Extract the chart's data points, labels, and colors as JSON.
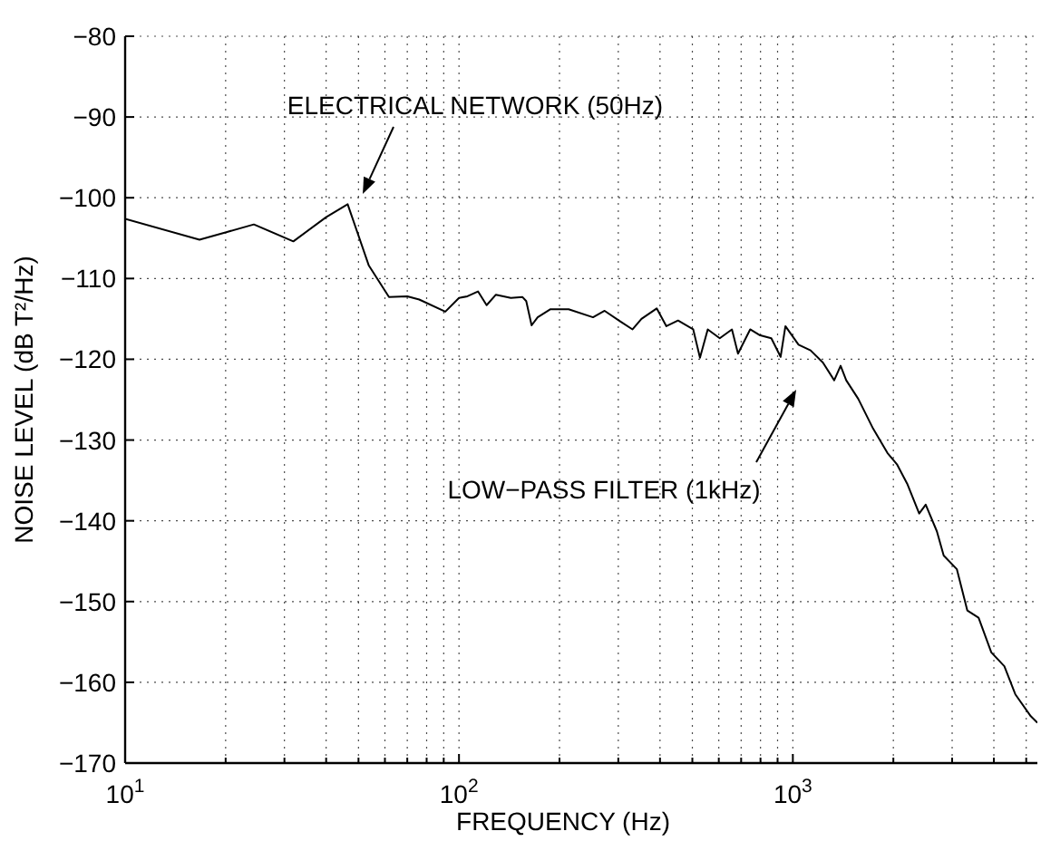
{
  "chart_data": {
    "type": "line",
    "xlabel": "FREQUENCY (Hz)",
    "ylabel": "NOISE LEVEL (dB T²/Hz)",
    "log": "x",
    "grid": true,
    "marker": "none",
    "line_style": "solid",
    "xlim": [
      10,
      5400
    ],
    "ylim": [
      -170,
      -80
    ],
    "xticks": [
      {
        "value": 10,
        "label": "10$^{1}$"
      },
      {
        "value": 20,
        "label": null
      },
      {
        "value": 30,
        "label": null
      },
      {
        "value": 40,
        "label": null
      },
      {
        "value": 50,
        "label": null
      },
      {
        "value": 60,
        "label": null
      },
      {
        "value": 70,
        "label": null
      },
      {
        "value": 80,
        "label": null
      },
      {
        "value": 90,
        "label": null
      },
      {
        "value": 100,
        "label": "10$^{2}$"
      },
      {
        "value": 200,
        "label": null
      },
      {
        "value": 300,
        "label": null
      },
      {
        "value": 400,
        "label": null
      },
      {
        "value": 500,
        "label": null
      },
      {
        "value": 600,
        "label": null
      },
      {
        "value": 700,
        "label": null
      },
      {
        "value": 800,
        "label": null
      },
      {
        "value": 900,
        "label": null
      },
      {
        "value": 1000,
        "label": "10$^{3}$"
      },
      {
        "value": 2000,
        "label": null
      },
      {
        "value": 3000,
        "label": null
      },
      {
        "value": 4000,
        "label": null
      },
      {
        "value": 5000,
        "label": null
      }
    ],
    "yticks": [
      -170,
      -160,
      -150,
      -140,
      -130,
      -120,
      -110,
      -100,
      -90,
      -80
    ],
    "series": [
      {
        "color": "#000000",
        "x": [
          10,
          16.7,
          24.3,
          31.9,
          40,
          46.4,
          53.7,
          61.7,
          70,
          76,
          91,
          100,
          106,
          114,
          121,
          129,
          143,
          155,
          159,
          165,
          172,
          188,
          213,
          252,
          273,
          304,
          331,
          352,
          391,
          418,
          453,
          503,
          527,
          556,
          604,
          657,
          685,
          745,
          794,
          862,
          919,
          950,
          1040,
          1130,
          1230,
          1330,
          1390,
          1445,
          1570,
          1740,
          1920,
          2050,
          2200,
          2390,
          2500,
          2700,
          2830,
          3100,
          3330,
          3600,
          3930,
          4300,
          4640,
          5160,
          5400
        ],
        "values": [
          -102.6,
          -105.2,
          -103.3,
          -105.4,
          -102.4,
          -100.8,
          -108.4,
          -112.3,
          -112.2,
          -112.6,
          -114.1,
          -112.4,
          -112.2,
          -111.6,
          -113.3,
          -112,
          -112.4,
          -112.3,
          -112.8,
          -115.8,
          -114.8,
          -113.8,
          -113.8,
          -114.8,
          -114,
          -115.3,
          -116.3,
          -115,
          -113.7,
          -115.9,
          -115.2,
          -116.3,
          -119.8,
          -116.3,
          -117.4,
          -116.3,
          -119.3,
          -116.3,
          -117,
          -117.4,
          -119.7,
          -115.9,
          -118.2,
          -118.9,
          -120.4,
          -122.6,
          -120.8,
          -122.6,
          -124.9,
          -128.6,
          -131.6,
          -133,
          -135.4,
          -139.1,
          -138,
          -141.3,
          -144.3,
          -146,
          -151.1,
          -152,
          -156.3,
          -158,
          -161.5,
          -164.2,
          -165
        ]
      }
    ],
    "annotations": [
      "ELECTRICAL NETWORK (50Hz)",
      "LOW−PASS FILTER (1kHz)"
    ]
  }
}
